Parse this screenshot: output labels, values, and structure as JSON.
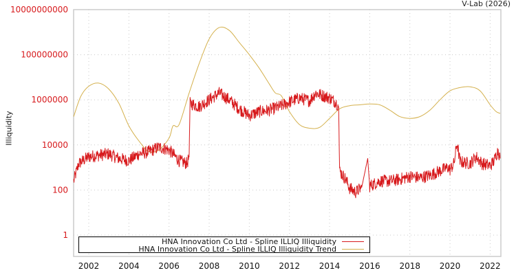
{
  "credit": "V-Lab (2026)",
  "chart_data": {
    "type": "line",
    "title": "",
    "xlabel": "",
    "ylabel": "Illiquidity",
    "yscale": "log",
    "ylim": [
      0.1,
      10000000000
    ],
    "xlim": [
      2001.25,
      2022.5
    ],
    "y_ticks": [
      {
        "value": 1,
        "label": "1"
      },
      {
        "value": 100,
        "label": "100"
      },
      {
        "value": 10000,
        "label": "10000"
      },
      {
        "value": 1000000,
        "label": "1000000"
      },
      {
        "value": 100000000,
        "label": "100000000"
      },
      {
        "value": 10000000000,
        "label": "10000000000"
      }
    ],
    "x_ticks": [
      "2002",
      "2004",
      "2006",
      "2008",
      "2010",
      "2012",
      "2014",
      "2016",
      "2018",
      "2020",
      "2022"
    ],
    "grid": true,
    "legend_position": "bottom-inside",
    "series": [
      {
        "name": "HNA Innovation Co Ltd - Spline ILLIQ Illiquidity",
        "color": "#d7191c",
        "points": [
          [
            2001.25,
            250
          ],
          [
            2001.5,
            1500
          ],
          [
            2002.0,
            3000
          ],
          [
            2002.5,
            3500
          ],
          [
            2003.0,
            4000
          ],
          [
            2003.5,
            2500
          ],
          [
            2004.0,
            2000
          ],
          [
            2004.5,
            4000
          ],
          [
            2005.0,
            5000
          ],
          [
            2005.5,
            8000
          ],
          [
            2006.0,
            6000
          ],
          [
            2006.5,
            2000
          ],
          [
            2006.9,
            1500
          ],
          [
            2007.0,
            3000
          ],
          [
            2007.05,
            700000
          ],
          [
            2007.5,
            500000
          ],
          [
            2008.0,
            1000000
          ],
          [
            2008.5,
            2000000
          ],
          [
            2009.0,
            1000000
          ],
          [
            2009.5,
            400000
          ],
          [
            2010.0,
            200000
          ],
          [
            2010.5,
            300000
          ],
          [
            2011.0,
            350000
          ],
          [
            2011.5,
            500000
          ],
          [
            2012.0,
            800000
          ],
          [
            2012.5,
            1200000
          ],
          [
            2013.0,
            900000
          ],
          [
            2013.3,
            2000000
          ],
          [
            2013.7,
            1500000
          ],
          [
            2014.0,
            1200000
          ],
          [
            2014.3,
            800000
          ],
          [
            2014.45,
            500000
          ],
          [
            2014.5,
            700
          ],
          [
            2014.8,
            300
          ],
          [
            2015.0,
            120
          ],
          [
            2015.3,
            80
          ],
          [
            2015.6,
            130
          ],
          [
            2015.9,
            2500
          ],
          [
            2016.0,
            150
          ],
          [
            2016.5,
            250
          ],
          [
            2017.0,
            250
          ],
          [
            2017.5,
            300
          ],
          [
            2018.0,
            400
          ],
          [
            2018.5,
            350
          ],
          [
            2019.0,
            450
          ],
          [
            2019.5,
            700
          ],
          [
            2019.9,
            1000
          ],
          [
            2020.0,
            800
          ],
          [
            2020.2,
            1500
          ],
          [
            2020.35,
            12000
          ],
          [
            2020.5,
            1800
          ],
          [
            2021.0,
            1500
          ],
          [
            2021.3,
            3000
          ],
          [
            2021.6,
            1500
          ],
          [
            2022.0,
            1200
          ],
          [
            2022.2,
            2000
          ],
          [
            2022.4,
            6000
          ],
          [
            2022.5,
            2500
          ]
        ]
      },
      {
        "name": "HNA Innovation Co Ltd - Spline ILLIQ Illiquidity Trend",
        "color": "#d4b04c",
        "points": [
          [
            2001.25,
            180000
          ],
          [
            2001.6,
            1400000
          ],
          [
            2002.0,
            4000000
          ],
          [
            2002.5,
            5500000
          ],
          [
            2003.0,
            3000000
          ],
          [
            2003.5,
            700000
          ],
          [
            2004.0,
            70000
          ],
          [
            2004.5,
            15000
          ],
          [
            2005.0,
            5000
          ],
          [
            2005.5,
            6000
          ],
          [
            2006.0,
            20000
          ],
          [
            2006.2,
            70000
          ],
          [
            2006.5,
            80000
          ],
          [
            2007.0,
            2000000
          ],
          [
            2007.5,
            40000000
          ],
          [
            2008.0,
            500000000
          ],
          [
            2008.5,
            1600000000
          ],
          [
            2009.0,
            1200000000
          ],
          [
            2009.5,
            350000000
          ],
          [
            2010.0,
            100000000
          ],
          [
            2010.5,
            25000000
          ],
          [
            2011.0,
            5000000
          ],
          [
            2011.3,
            2000000
          ],
          [
            2011.6,
            1500000
          ],
          [
            2012.0,
            300000
          ],
          [
            2012.5,
            80000
          ],
          [
            2013.0,
            55000
          ],
          [
            2013.5,
            60000
          ],
          [
            2014.0,
            150000
          ],
          [
            2014.5,
            400000
          ],
          [
            2015.0,
            550000
          ],
          [
            2015.5,
            600000
          ],
          [
            2016.0,
            650000
          ],
          [
            2016.5,
            600000
          ],
          [
            2017.0,
            350000
          ],
          [
            2017.5,
            180000
          ],
          [
            2018.0,
            150000
          ],
          [
            2018.5,
            180000
          ],
          [
            2019.0,
            350000
          ],
          [
            2019.5,
            1000000
          ],
          [
            2020.0,
            2500000
          ],
          [
            2020.5,
            3500000
          ],
          [
            2021.0,
            3800000
          ],
          [
            2021.5,
            2500000
          ],
          [
            2022.0,
            600000
          ],
          [
            2022.3,
            300000
          ],
          [
            2022.5,
            250000
          ]
        ]
      }
    ]
  }
}
